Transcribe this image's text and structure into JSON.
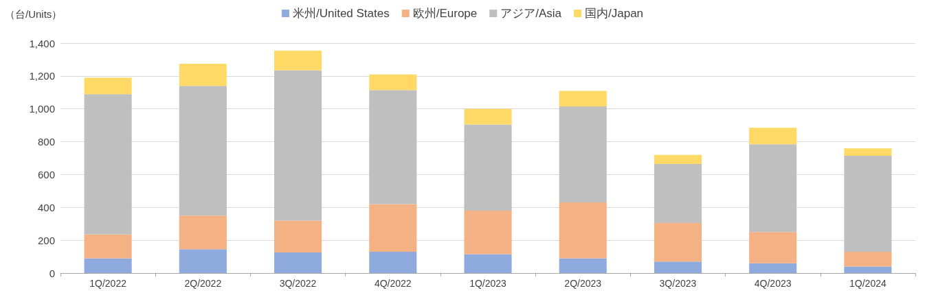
{
  "chart_data": {
    "type": "bar",
    "stacked": true,
    "ylabel": "（台/Units）",
    "categories": [
      "1Q/2022",
      "2Q/2022",
      "3Q/2022",
      "4Q/2022",
      "1Q/2023",
      "2Q/2023",
      "3Q/2023",
      "4Q/2023",
      "1Q/2024"
    ],
    "series": [
      {
        "name": "米州/United States",
        "color": "#8faadc",
        "values": [
          90,
          145,
          125,
          130,
          115,
          90,
          70,
          60,
          40
        ]
      },
      {
        "name": "欧州/Europe",
        "color": "#f4b183",
        "values": [
          145,
          205,
          195,
          290,
          265,
          340,
          235,
          190,
          90
        ]
      },
      {
        "name": "アジア/Asia",
        "color": "#bfbfbf",
        "values": [
          855,
          790,
          915,
          695,
          525,
          585,
          360,
          535,
          585
        ]
      },
      {
        "name": "国内/Japan",
        "color": "#ffd966",
        "values": [
          100,
          135,
          120,
          95,
          95,
          95,
          55,
          100,
          45
        ]
      }
    ],
    "ylim": [
      0,
      1400
    ],
    "yticks": [
      0,
      200,
      400,
      600,
      800,
      {
        "value": 1000,
        "label": "1,000"
      },
      {
        "value": 1200,
        "label": "1,200"
      },
      {
        "value": 1400,
        "label": "1,400"
      }
    ],
    "grid": "y",
    "legend": "top"
  }
}
